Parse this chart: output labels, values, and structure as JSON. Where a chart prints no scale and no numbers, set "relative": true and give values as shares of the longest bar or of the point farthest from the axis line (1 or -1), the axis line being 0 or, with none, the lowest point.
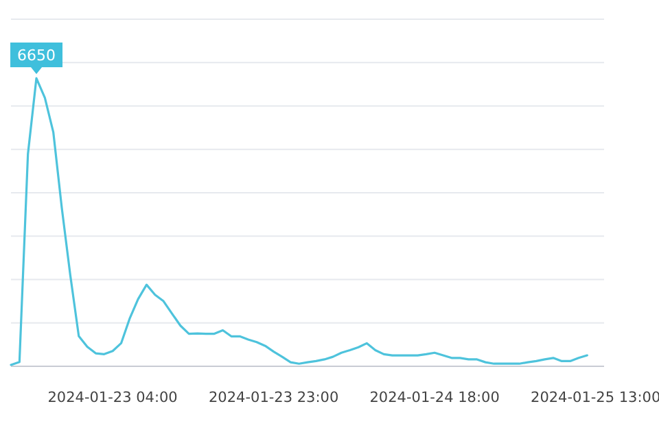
{
  "chart_data": {
    "type": "line",
    "x": [
      "2024-01-22T16:00",
      "2024-01-22T17:00",
      "2024-01-22T18:00",
      "2024-01-22T19:00",
      "2024-01-22T20:00",
      "2024-01-22T21:00",
      "2024-01-22T22:00",
      "2024-01-22T23:00",
      "2024-01-23T00:00",
      "2024-01-23T01:00",
      "2024-01-23T02:00",
      "2024-01-23T03:00",
      "2024-01-23T04:00",
      "2024-01-23T05:00",
      "2024-01-23T06:00",
      "2024-01-23T07:00",
      "2024-01-23T08:00",
      "2024-01-23T09:00",
      "2024-01-23T10:00",
      "2024-01-23T11:00",
      "2024-01-23T12:00",
      "2024-01-23T13:00",
      "2024-01-23T14:00",
      "2024-01-23T15:00",
      "2024-01-23T16:00",
      "2024-01-23T17:00",
      "2024-01-23T18:00",
      "2024-01-23T19:00",
      "2024-01-23T20:00",
      "2024-01-23T21:00",
      "2024-01-23T22:00",
      "2024-01-23T23:00",
      "2024-01-24T00:00",
      "2024-01-24T01:00",
      "2024-01-24T02:00",
      "2024-01-24T03:00",
      "2024-01-24T04:00",
      "2024-01-24T05:00",
      "2024-01-24T06:00",
      "2024-01-24T07:00",
      "2024-01-24T08:00",
      "2024-01-24T09:00",
      "2024-01-24T10:00",
      "2024-01-24T11:00",
      "2024-01-24T12:00",
      "2024-01-24T13:00",
      "2024-01-24T14:00",
      "2024-01-24T15:00",
      "2024-01-24T16:00",
      "2024-01-24T17:00",
      "2024-01-24T18:00",
      "2024-01-24T19:00",
      "2024-01-24T20:00",
      "2024-01-24T21:00",
      "2024-01-24T22:00",
      "2024-01-24T23:00",
      "2024-01-25T00:00",
      "2024-01-25T01:00",
      "2024-01-25T02:00",
      "2024-01-25T03:00",
      "2024-01-25T04:00",
      "2024-01-25T05:00",
      "2024-01-25T06:00",
      "2024-01-25T07:00",
      "2024-01-25T08:00",
      "2024-01-25T09:00",
      "2024-01-25T10:00",
      "2024-01-25T11:00",
      "2024-01-25T12:00"
    ],
    "relative": true,
    "series": [
      {
        "color": "#4ec3dc",
        "values": [
          0.005,
          0.015,
          0.737,
          1,
          0.932,
          0.812,
          0.549,
          0.316,
          0.105,
          0.068,
          0.045,
          0.042,
          0.053,
          0.08,
          0.165,
          0.233,
          0.283,
          0.248,
          0.226,
          0.183,
          0.141,
          0.113,
          0.114,
          0.113,
          0.113,
          0.125,
          0.104,
          0.104,
          0.093,
          0.084,
          0.071,
          0.051,
          0.033,
          0.014,
          0.009,
          0.014,
          0.018,
          0.024,
          0.033,
          0.047,
          0.056,
          0.066,
          0.08,
          0.056,
          0.042,
          0.038,
          0.038,
          0.038,
          0.038,
          0.042,
          0.047,
          0.038,
          0.029,
          0.029,
          0.024,
          0.024,
          0.014,
          0.009,
          0.009,
          0.009,
          0.009,
          0.014,
          0.018,
          0.024,
          0.029,
          0.018,
          0.018,
          0.029,
          0.038
        ]
      }
    ],
    "xlim": [
      "2024-01-22T16:00",
      "2024-01-25T14:00"
    ],
    "xticks": [
      {
        "value": "2024-01-23T04:00",
        "label": "2024-01-23 04:00"
      },
      {
        "value": "2024-01-23T23:00",
        "label": "2024-01-23 23:00"
      },
      {
        "value": "2024-01-24T18:00",
        "label": "2024-01-24 18:00"
      },
      {
        "value": "2024-01-25T13:00",
        "label": "2024-01-25 13:00"
      }
    ],
    "tick_labels": "x",
    "grid": "y",
    "annotations": [
      {
        "text": "6650",
        "x": "2024-01-22T19:00",
        "y": 1
      }
    ]
  }
}
